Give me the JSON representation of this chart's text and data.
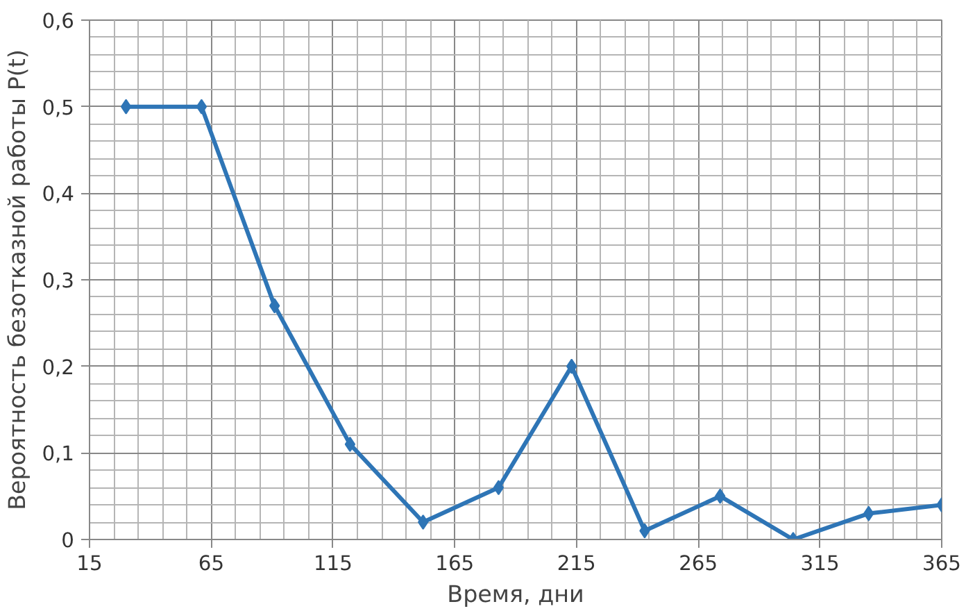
{
  "chart_data": {
    "type": "line",
    "xlabel": "Время, дни",
    "ylabel": "Вероятность безотказной работы P(t)",
    "x": [
      30,
      61,
      91,
      122,
      152,
      183,
      213,
      243,
      274,
      304,
      335,
      365
    ],
    "series": [
      {
        "color": "#2e75b6",
        "values": [
          0.5,
          0.5,
          0.27,
          0.11,
          0.02,
          0.06,
          0.2,
          0.01,
          0.05,
          0,
          0.03,
          0.04
        ]
      }
    ],
    "xlim": [
      15,
      365
    ],
    "xticks": [
      15,
      65,
      115,
      165,
      215,
      265,
      315,
      365
    ],
    "ylim": [
      0,
      0.6
    ],
    "yticks": [
      0,
      {
        "value": 0.1,
        "label": "0,1"
      },
      {
        "value": 0.2,
        "label": "0,2"
      },
      {
        "value": 0.3,
        "label": "0,3"
      },
      {
        "value": 0.4,
        "label": "0,4"
      },
      {
        "value": 0.5,
        "label": "0,5"
      },
      {
        "value": 0.6,
        "label": "0,6"
      }
    ],
    "grid": true,
    "marker": "diamond",
    "line_style": "solid"
  }
}
